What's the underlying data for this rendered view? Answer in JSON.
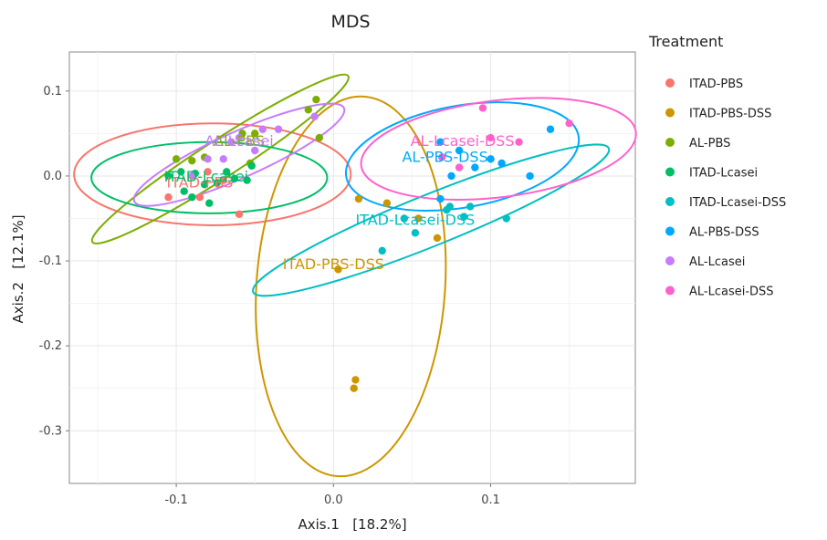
{
  "chart_data": {
    "type": "scatter",
    "title": "MDS",
    "xlabel": "Axis.1   [18.2%]",
    "ylabel": "Axis.2   [12.1%]",
    "xlim": [
      -0.168,
      0.192
    ],
    "ylim": [
      -0.362,
      0.146
    ],
    "xticks": [
      -0.1,
      0.0,
      0.1
    ],
    "xtick_labels": [
      "-0.1",
      "0.0",
      "0.1"
    ],
    "yticks": [
      0.1,
      0.0,
      -0.1,
      -0.2,
      -0.3
    ],
    "ytick_labels": [
      "0.1",
      "0.0",
      "-0.1",
      "-0.2",
      "-0.3"
    ],
    "grid": true,
    "legend": {
      "title": "Treatment",
      "position": "right"
    },
    "series": [
      {
        "name": "ITAD-PBS",
        "color": "#F8766D",
        "points": [
          [
            -0.105,
            -0.025
          ],
          [
            -0.085,
            -0.025
          ],
          [
            -0.07,
            -0.005
          ],
          [
            -0.08,
            0.005
          ],
          [
            -0.06,
            -0.045
          ]
        ],
        "ellipse": {
          "cx": -0.077,
          "cy": 0.002,
          "rx": 0.088,
          "ry": 0.06,
          "angle": 0
        },
        "label": {
          "x": -0.085,
          "y": -0.007,
          "text": "ITAD-PBS"
        }
      },
      {
        "name": "ITAD-PBS-DSS",
        "color": "#CD9600",
        "points": [
          [
            0.016,
            -0.027
          ],
          [
            0.003,
            -0.11
          ],
          [
            0.034,
            -0.032
          ],
          [
            0.054,
            -0.05
          ],
          [
            0.066,
            -0.073
          ],
          [
            0.014,
            -0.24
          ],
          [
            0.013,
            -0.25
          ]
        ],
        "ellipse": {
          "cx": 0.011,
          "cy": -0.13,
          "rx": 0.06,
          "ry": 0.224,
          "angle": 4
        },
        "label": {
          "x": 0.0,
          "y": -0.103,
          "text": "ITAD-PBS-DSS"
        }
      },
      {
        "name": "AL-PBS",
        "color": "#7CAE00",
        "points": [
          [
            -0.1,
            0.02
          ],
          [
            -0.09,
            0.018
          ],
          [
            -0.082,
            0.022
          ],
          [
            -0.058,
            0.05
          ],
          [
            -0.05,
            0.05
          ],
          [
            -0.016,
            0.078
          ],
          [
            -0.011,
            0.09
          ],
          [
            -0.009,
            0.045
          ],
          [
            -0.053,
            0.015
          ]
        ],
        "ellipse": {
          "cx": -0.072,
          "cy": 0.02,
          "rx": 0.097,
          "ry": 0.022,
          "angle": -33
        },
        "label": {
          "x": -0.06,
          "y": 0.042,
          "text": "AL-PBS"
        }
      },
      {
        "name": "ITAD-Lcasei",
        "color": "#00BE67",
        "points": [
          [
            -0.105,
            0.0
          ],
          [
            -0.097,
            0.005
          ],
          [
            -0.095,
            -0.018
          ],
          [
            -0.088,
            0.003
          ],
          [
            -0.082,
            -0.01
          ],
          [
            -0.079,
            -0.032
          ],
          [
            -0.074,
            -0.008
          ],
          [
            -0.068,
            0.005
          ],
          [
            -0.063,
            -0.003
          ],
          [
            -0.055,
            -0.005
          ],
          [
            -0.052,
            0.012
          ],
          [
            -0.09,
            -0.025
          ]
        ],
        "ellipse": {
          "cx": -0.079,
          "cy": -0.002,
          "rx": 0.075,
          "ry": 0.042,
          "angle": 0
        },
        "label": {
          "x": -0.081,
          "y": 0.0,
          "text": "ITAD-Lcasei"
        }
      },
      {
        "name": "ITAD-Lcasei-DSS",
        "color": "#00BFC4",
        "points": [
          [
            0.031,
            -0.088
          ],
          [
            0.045,
            -0.05
          ],
          [
            0.052,
            -0.067
          ],
          [
            0.072,
            -0.04
          ],
          [
            0.074,
            -0.036
          ],
          [
            0.083,
            -0.048
          ],
          [
            0.087,
            -0.036
          ],
          [
            0.11,
            -0.05
          ]
        ],
        "ellipse": {
          "cx": 0.062,
          "cy": -0.052,
          "rx": 0.122,
          "ry": 0.03,
          "angle": -22
        },
        "label": {
          "x": 0.052,
          "y": -0.051,
          "text": "ITAD-Lcasei-DSS"
        }
      },
      {
        "name": "AL-PBS-DSS",
        "color": "#00A9FF",
        "points": [
          [
            0.068,
            -0.027
          ],
          [
            0.075,
            0.0
          ],
          [
            0.08,
            0.03
          ],
          [
            0.09,
            0.01
          ],
          [
            0.1,
            0.02
          ],
          [
            0.107,
            0.015
          ],
          [
            0.125,
            0.0
          ],
          [
            0.138,
            0.055
          ],
          [
            0.068,
            0.04
          ]
        ],
        "ellipse": {
          "cx": 0.082,
          "cy": 0.023,
          "rx": 0.075,
          "ry": 0.06,
          "angle": -10
        },
        "label": {
          "x": 0.071,
          "y": 0.023,
          "text": "AL-PBS-DSS"
        }
      },
      {
        "name": "AL-Lcasei",
        "color": "#C77CFF",
        "points": [
          [
            -0.09,
            0.0
          ],
          [
            -0.08,
            0.02
          ],
          [
            -0.07,
            0.02
          ],
          [
            -0.065,
            0.04
          ],
          [
            -0.06,
            0.045
          ],
          [
            -0.05,
            0.03
          ],
          [
            -0.035,
            0.055
          ],
          [
            -0.012,
            0.07
          ],
          [
            -0.045,
            0.055
          ]
        ],
        "ellipse": {
          "cx": -0.06,
          "cy": 0.025,
          "rx": 0.073,
          "ry": 0.027,
          "angle": -24
        },
        "label": {
          "x": -0.06,
          "y": 0.042,
          "text": "AL-Lcasei"
        }
      },
      {
        "name": "AL-Lcasei-DSS",
        "color": "#FF61CC",
        "points": [
          [
            0.069,
            0.022
          ],
          [
            0.08,
            0.01
          ],
          [
            0.095,
            0.08
          ],
          [
            0.1,
            0.045
          ],
          [
            0.118,
            0.04
          ],
          [
            0.15,
            0.062
          ]
        ],
        "ellipse": {
          "cx": 0.105,
          "cy": 0.032,
          "rx": 0.088,
          "ry": 0.057,
          "angle": -7
        },
        "label": {
          "x": 0.082,
          "y": 0.042,
          "text": "AL-Lcasei-DSS"
        }
      }
    ]
  }
}
